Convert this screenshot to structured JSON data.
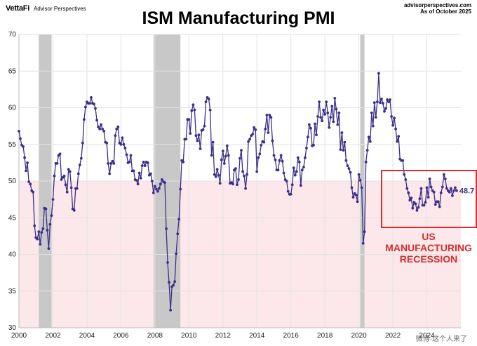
{
  "header": {
    "brand_name": "VettaFi",
    "brand_sub": "Advisor Perspectives",
    "source_line1": "advisorperspectives.com",
    "source_line2": "As of  October 2025"
  },
  "watermark": "微博·这个人来了",
  "chart_data": {
    "type": "line",
    "title": "ISM Manufacturing PMI",
    "xlabel": "",
    "ylabel": "",
    "xlim": [
      2000,
      2026
    ],
    "ylim": [
      30,
      70
    ],
    "x_ticks": [
      "2000",
      "2002",
      "2004",
      "2006",
      "2008",
      "2010",
      "2012",
      "2014",
      "2016",
      "2018",
      "2020",
      "2022",
      "2024"
    ],
    "y_ticks": [
      "30",
      "35",
      "40",
      "45",
      "50",
      "55",
      "60",
      "65",
      "70"
    ],
    "threshold": 50,
    "recessions": [
      [
        2001.17,
        2001.92
      ],
      [
        2007.92,
        2009.5
      ],
      [
        2020.08,
        2020.33
      ]
    ],
    "last_value_label": "48.7",
    "annotation": {
      "line1": "US",
      "line2": "MANUFACTURING",
      "line3": "RECESSION"
    },
    "line_color": "#3a2f8a",
    "band_color": "#fce8ea",
    "recession_color": "#c8c8c8",
    "box_color": "#d32f2f",
    "series": [
      {
        "name": "ISM Manufacturing PMI",
        "start": "2000-01",
        "values": [
          56.8,
          55.8,
          54.9,
          54.7,
          53.2,
          51.4,
          52.5,
          49.9,
          49.6,
          48.7,
          48.5,
          43.9,
          42.3,
          42.1,
          43.1,
          41.4,
          43.0,
          43.5,
          46.3,
          46.2,
          43.3,
          40.8,
          44.1,
          45.3,
          47.5,
          50.7,
          52.4,
          52.4,
          53.5,
          53.7,
          50.2,
          50.5,
          50.7,
          49.5,
          48.5,
          51.6,
          51.3,
          49.1,
          46.2,
          46.0,
          49.0,
          49.0,
          51.0,
          52.2,
          53.1,
          55.2,
          58.4,
          60.1,
          60.8,
          60.6,
          60.6,
          61.4,
          60.6,
          60.5,
          59.9,
          58.3,
          57.4,
          57.1,
          57.7,
          57.1,
          56.8,
          55.3,
          55.2,
          52.4,
          51.0,
          52.4,
          52.7,
          52.4,
          56.2,
          57.1,
          57.4,
          55.2,
          55.0,
          55.9,
          55.0,
          54.5,
          53.6,
          52.5,
          52.6,
          53.5,
          51.4,
          51.4,
          50.2,
          50.1,
          49.6,
          51.1,
          50.4,
          52.1,
          52.6,
          52.1,
          52.6,
          52.5,
          50.8,
          51.0,
          50.0,
          48.4,
          49.3,
          48.9,
          48.6,
          49.0,
          49.6,
          50.2,
          49.9,
          49.8,
          43.5,
          38.9,
          36.2,
          32.4,
          35.6,
          35.8,
          36.3,
          40.1,
          42.8,
          44.8,
          48.9,
          52.8,
          52.6,
          55.7,
          55.7,
          58.4,
          58.4,
          56.5,
          59.6,
          60.4,
          59.7,
          56.2,
          55.5,
          56.3,
          54.4,
          56.9,
          57.0,
          57.5,
          60.8,
          61.4,
          61.2,
          59.7,
          53.5,
          55.3,
          50.9,
          50.6,
          51.6,
          50.8,
          49.7,
          52.9,
          54.1,
          52.4,
          53.4,
          54.8,
          53.5,
          49.7,
          49.8,
          49.6,
          51.5,
          51.7,
          49.5,
          50.2,
          53.1,
          54.2,
          51.3,
          50.7,
          49.0,
          50.9,
          55.4,
          55.7,
          56.2,
          56.4,
          57.3,
          57.0,
          51.3,
          53.2,
          53.7,
          54.9,
          55.4,
          55.3,
          57.1,
          59.0,
          56.6,
          59.0,
          58.7,
          55.5,
          53.5,
          52.9,
          51.5,
          51.5,
          52.8,
          53.5,
          52.7,
          51.1,
          50.2,
          50.0,
          48.6,
          48.2,
          48.2,
          49.5,
          51.8,
          50.8,
          51.3,
          53.2,
          52.6,
          49.4,
          51.5,
          51.9,
          53.2,
          54.5,
          56.0,
          57.7,
          57.2,
          54.8,
          54.9,
          57.8,
          56.3,
          58.8,
          60.8,
          58.7,
          58.2,
          59.7,
          59.1,
          60.8,
          59.3,
          57.3,
          58.7,
          60.2,
          58.1,
          61.3,
          59.8,
          57.7,
          59.3,
          54.3,
          56.6,
          54.2,
          55.3,
          52.8,
          52.1,
          51.7,
          51.2,
          49.1,
          47.8,
          48.3,
          48.1,
          47.2,
          50.9,
          50.1,
          49.1,
          41.5,
          43.1,
          52.6,
          54.2,
          56.0,
          55.4,
          59.3,
          57.5,
          60.7,
          58.7,
          60.8,
          64.7,
          60.7,
          61.2,
          60.6,
          59.5,
          59.9,
          61.1,
          60.8,
          61.1,
          58.8,
          57.6,
          58.6,
          57.1,
          55.4,
          56.1,
          53.0,
          52.8,
          52.8,
          50.9,
          50.2,
          49.0,
          48.4,
          47.4,
          47.7,
          46.3,
          47.1,
          46.9,
          46.0,
          46.4,
          47.6,
          49.0,
          46.7,
          46.7,
          47.1,
          49.1,
          47.8,
          50.3,
          49.2,
          48.7,
          48.5,
          46.8,
          47.2,
          47.2,
          46.5,
          48.4,
          49.2,
          50.9,
          50.3,
          49.0,
          48.7,
          48.5,
          49.0,
          48.0,
          48.7,
          49.1,
          48.7
        ]
      }
    ]
  }
}
